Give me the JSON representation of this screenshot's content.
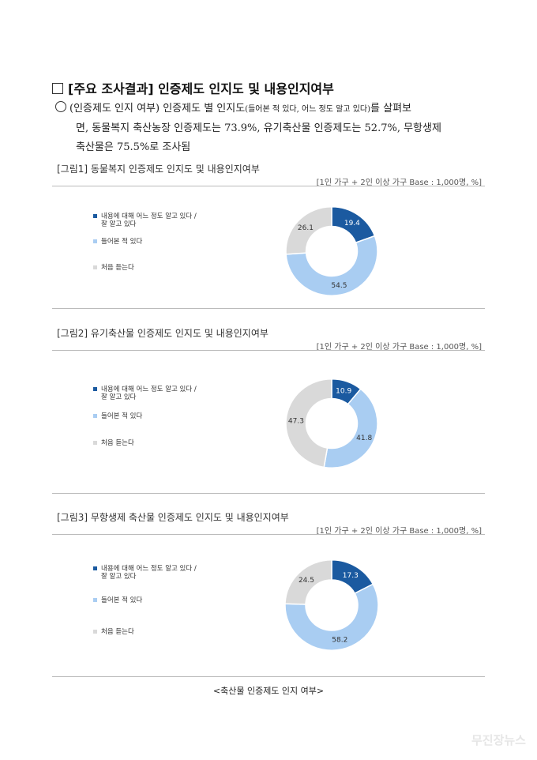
{
  "heading": "[주요 조사결과] 인증제도 인지도 및 내용인지여부",
  "summary": {
    "line1_main": "(인증제도 인지 여부) 인증제도 별 인지도",
    "line1_small": "(들어본 적 있다, 어느 정도 알고 있다)",
    "line1_tail": "를 살펴보",
    "line2": "면, 동물복지 축산농장 인증제도는 73.9%, 유기축산물 인증제도는 52.7%, 무항생제",
    "line3": "축산물은 75.5%로 조사됨"
  },
  "colors": {
    "know": "#1b5aa0",
    "heard": "#a9cdf2",
    "first": "#d9d9d9"
  },
  "legend": [
    {
      "label_line1": "내용에 대해 어느 정도 알고 있다 /",
      "label_line2": "잘 알고 있다"
    },
    {
      "label_line1": "들어본 적 있다",
      "label_line2": ""
    },
    {
      "label_line1": "처음 듣는다",
      "label_line2": ""
    }
  ],
  "chart_data": [
    {
      "type": "pie",
      "title": "[그림1] 동물복지 인증제도 인지도 및 내용인지여부",
      "base": "[1인 가구 + 2인 이상 가구 Base : 1,000명, %]",
      "categories": [
        "내용에 대해 어느 정도 알고 있다 / 잘 알고 있다",
        "들어본 적 있다",
        "처음 듣는다"
      ],
      "values": [
        19.4,
        54.5,
        26.1
      ]
    },
    {
      "type": "pie",
      "title": "[그림2] 유기축산물 인증제도 인지도 및 내용인지여부",
      "base": "[1인 가구 + 2인 이상 가구 Base : 1,000명, %]",
      "categories": [
        "내용에 대해 어느 정도 알고 있다 / 잘 알고 있다",
        "들어본 적 있다",
        "처음 듣는다"
      ],
      "values": [
        10.9,
        41.8,
        47.3
      ]
    },
    {
      "type": "pie",
      "title": "[그림3] 무항생제 축산물 인증제도 인지도 및 내용인지여부",
      "base": "[1인 가구 + 2인 이상 가구 Base : 1,000명, %]",
      "categories": [
        "내용에 대해 어느 정도 알고 있다 / 잘 알고 있다",
        "들어본 적 있다",
        "처음 듣는다"
      ],
      "values": [
        17.3,
        58.2,
        24.5
      ]
    }
  ],
  "caption": "<축산물 인증제도 인지 여부>",
  "watermark": "무진장뉴스"
}
